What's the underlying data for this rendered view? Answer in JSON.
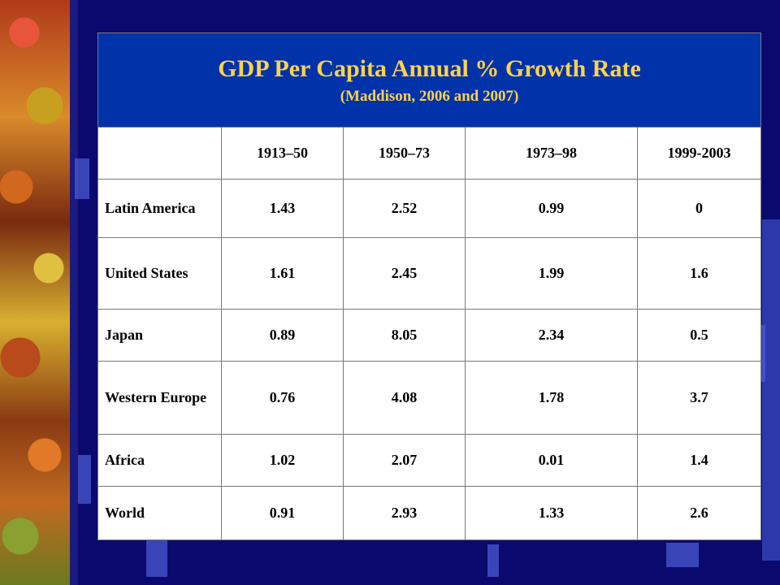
{
  "header": {
    "title": "GDP Per Capita Annual % Growth Rate",
    "subtitle": "(Maddison, 2006 and 2007)"
  },
  "table": {
    "columns": [
      "1913–50",
      "1950–73",
      "1973–98",
      "1999-2003"
    ],
    "rows": [
      {
        "label": "Latin America",
        "values": [
          "1.43",
          "2.52",
          "0.99",
          "0"
        ]
      },
      {
        "label": "United States",
        "values": [
          "1.61",
          "2.45",
          "1.99",
          "1.6"
        ]
      },
      {
        "label": "Japan",
        "values": [
          "0.89",
          "8.05",
          "2.34",
          "0.5"
        ]
      },
      {
        "label": "Western Europe",
        "values": [
          "0.76",
          "4.08",
          "1.78",
          "3.7"
        ]
      },
      {
        "label": "Africa",
        "values": [
          "1.02",
          "2.07",
          "0.01",
          "1.4"
        ]
      },
      {
        "label": "World",
        "values": [
          "0.91",
          "2.93",
          "1.33",
          "2.6"
        ]
      }
    ]
  },
  "colors": {
    "background": "#0a0a6e",
    "title_band": "#0033aa",
    "title_text": "#ffd24a",
    "column_header_text": "#e0001a",
    "row_label_text": "#1a2a8a"
  }
}
